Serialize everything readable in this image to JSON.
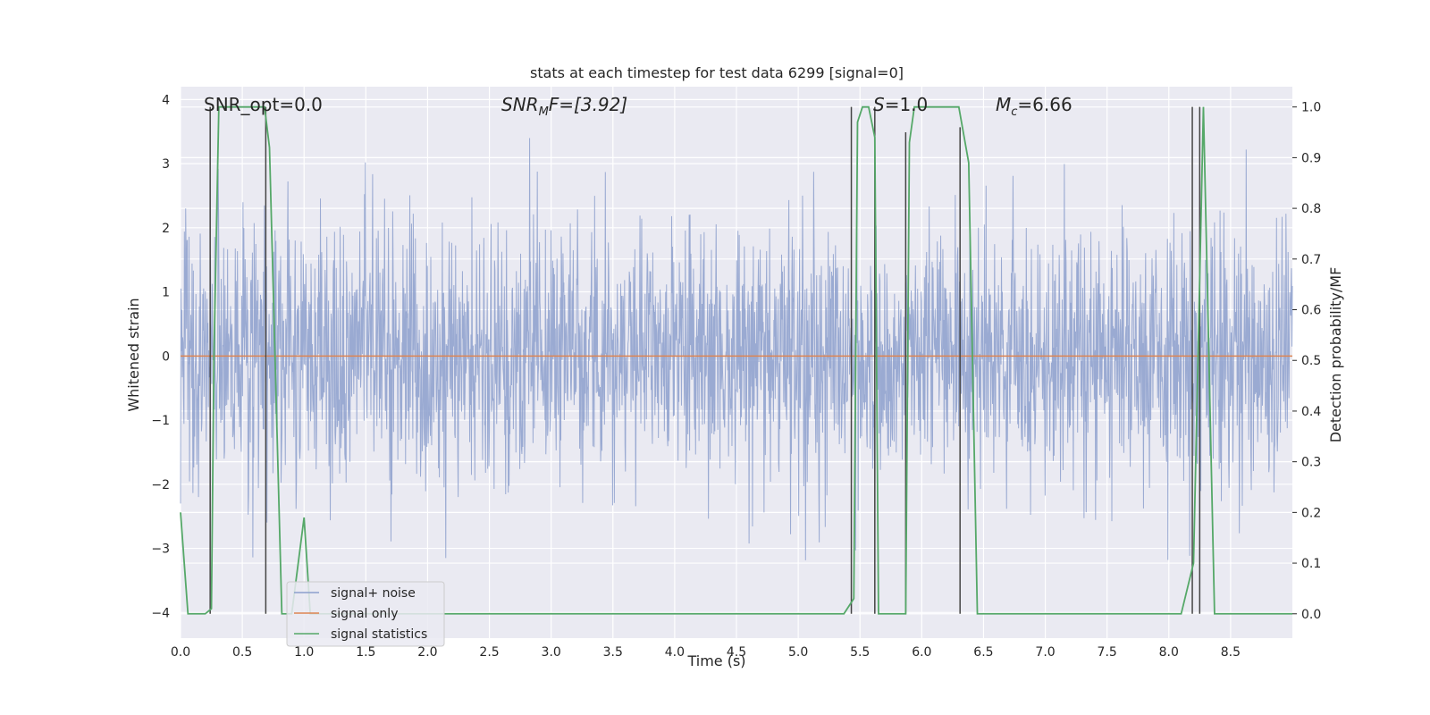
{
  "chart_data": {
    "type": "line",
    "title": "stats at each timestep for test data 6299 [signal=0]",
    "xlabel": "Time (s)",
    "ylabel": "Whitened strain",
    "ylabel_right": "Detection probability/MF",
    "xlim": [
      0,
      9.0
    ],
    "ylim": [
      -4.4,
      4.2
    ],
    "ylim_right": [
      -0.048,
      1.04
    ],
    "x_ticks": [
      "0.0",
      "0.5",
      "1.0",
      "1.5",
      "2.0",
      "2.5",
      "3.0",
      "3.5",
      "4.0",
      "4.5",
      "5.0",
      "5.5",
      "6.0",
      "6.5",
      "7.0",
      "7.5",
      "8.0",
      "8.5"
    ],
    "y_ticks": [
      "4",
      "3",
      "2",
      "1",
      "0",
      "−1",
      "−2",
      "−3",
      "−4"
    ],
    "y_ticks_right": [
      "1.0",
      "0.9",
      "0.8",
      "0.7",
      "0.6",
      "0.5",
      "0.4",
      "0.3",
      "0.2",
      "0.1",
      "0.0"
    ],
    "grid": true,
    "legend_position": "lower-left",
    "annotations": {
      "snr_opt": "SNR_opt=0.0",
      "snr_mf_prefix": "SNR",
      "snr_mf_sub": "M",
      "snr_mf_suffix": "F=[3.92]",
      "s_italic": "S",
      "s_value": "=1.0",
      "mc_main": "M",
      "mc_sub": "c",
      "mc_value": "=6.66"
    },
    "series": [
      {
        "name": "signal+ noise",
        "color": "#8c9fcc",
        "description": "whitened noisy strain, dense noise spanning about -2.5 to 3.5",
        "noise_envelope": [
          -2.0,
          2.0
        ]
      },
      {
        "name": "signal only",
        "color": "#dd8452",
        "x": [
          0,
          9.0
        ],
        "y": [
          0,
          0
        ]
      },
      {
        "name": "signal statistics",
        "color": "#55a868",
        "x": [
          0.0,
          0.06,
          0.2,
          0.25,
          0.27,
          0.31,
          0.34,
          0.68,
          0.72,
          0.82,
          0.9,
          1.0,
          1.05,
          1.15,
          5.37,
          5.45,
          5.48,
          5.52,
          5.57,
          5.62,
          5.65,
          5.7,
          5.87,
          5.9,
          5.94,
          5.98,
          6.3,
          6.38,
          6.45,
          8.1,
          8.2,
          8.28,
          8.37,
          9.0
        ],
        "y": [
          0.2,
          0.0,
          0.0,
          0.01,
          0.5,
          1.0,
          1.0,
          1.0,
          0.92,
          0.0,
          0.0,
          0.19,
          0.0,
          0.0,
          0.0,
          0.03,
          0.97,
          1.0,
          1.0,
          0.94,
          0.0,
          0.0,
          0.0,
          0.93,
          1.0,
          1.0,
          1.0,
          0.89,
          0.0,
          0.0,
          0.1,
          1.0,
          0.0,
          0.0
        ]
      }
    ],
    "vertical_markers": {
      "color": "#444444",
      "x": [
        0.24,
        0.69,
        5.43,
        5.62,
        5.87,
        6.31,
        8.19,
        8.25
      ],
      "y_top": [
        1.0,
        1.0,
        1.0,
        1.0,
        0.95,
        0.96,
        1.0,
        1.0
      ],
      "y_bottom": [
        0.0,
        0.0,
        0.0,
        0.0,
        0.0,
        0.0,
        0.0,
        0.0
      ]
    }
  }
}
